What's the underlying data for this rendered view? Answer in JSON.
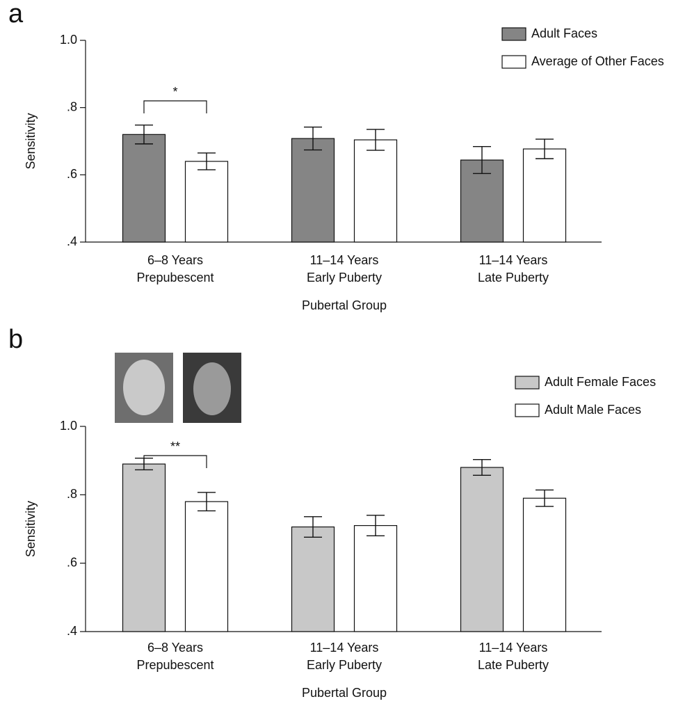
{
  "chart_data": [
    {
      "type": "bar",
      "panel": "a",
      "ylabel": "Sensitivity",
      "xlabel": "Pubertal Group",
      "categories": [
        [
          "6–8 Years",
          "Prepubescent"
        ],
        [
          "11–14 Years",
          "Early Puberty"
        ],
        [
          "11–14 Years",
          "Late Puberty"
        ]
      ],
      "series": [
        {
          "name": "Adult Faces",
          "color": "#858585",
          "values": [
            0.72,
            0.708,
            0.644
          ],
          "errors": [
            0.028,
            0.034,
            0.04
          ]
        },
        {
          "name": "Average of Other Faces",
          "color": "#ffffff",
          "values": [
            0.64,
            0.704,
            0.677
          ],
          "errors": [
            0.025,
            0.031,
            0.029
          ]
        }
      ],
      "annotation": "*",
      "ylim": [
        0.4,
        1.0
      ],
      "yticks": [
        {
          "value": 0.4,
          "label": ".4"
        },
        {
          "value": 0.6,
          "label": ".6"
        },
        {
          "value": 0.8,
          "label": ".8"
        },
        {
          "value": 1.0,
          "label": "1.0"
        }
      ],
      "legend": "upper right"
    },
    {
      "type": "bar",
      "panel": "b",
      "ylabel": "Sensitivity",
      "xlabel": "Pubertal Group",
      "categories": [
        [
          "6–8 Years",
          "Prepubescent"
        ],
        [
          "11–14 Years",
          "Early Puberty"
        ],
        [
          "11–14 Years",
          "Late Puberty"
        ]
      ],
      "series": [
        {
          "name": "Adult Female Faces",
          "color": "#c8c8c8",
          "values": [
            0.89,
            0.706,
            0.88
          ],
          "errors": [
            0.017,
            0.03,
            0.023
          ]
        },
        {
          "name": "Adult Male Faces",
          "color": "#ffffff",
          "values": [
            0.78,
            0.71,
            0.79
          ],
          "errors": [
            0.027,
            0.03,
            0.024
          ]
        }
      ],
      "annotation": "**",
      "ylim": [
        0.4,
        1.0
      ],
      "yticks": [
        {
          "value": 0.4,
          "label": ".4"
        },
        {
          "value": 0.6,
          "label": ".6"
        },
        {
          "value": 0.8,
          "label": ".8"
        },
        {
          "value": 1.0,
          "label": "1.0"
        }
      ],
      "legend": "upper right"
    }
  ]
}
